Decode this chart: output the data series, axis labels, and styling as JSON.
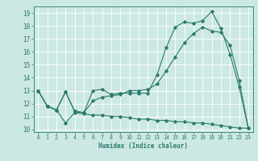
{
  "title": "",
  "xlabel": "Humidex (Indice chaleur)",
  "ylabel": "",
  "xlim": [
    -0.5,
    23.5
  ],
  "ylim": [
    9.8,
    19.5
  ],
  "yticks": [
    10,
    11,
    12,
    13,
    14,
    15,
    16,
    17,
    18,
    19
  ],
  "xticks": [
    0,
    1,
    2,
    3,
    4,
    5,
    6,
    7,
    8,
    9,
    10,
    11,
    12,
    13,
    14,
    15,
    16,
    17,
    18,
    19,
    20,
    21,
    22,
    23
  ],
  "bg_color": "#cce8e4",
  "grid_color": "#ffffff",
  "line_color": "#2a7a6a",
  "curves": {
    "line1": {
      "x": [
        0,
        1,
        2,
        3,
        4,
        5,
        6,
        7,
        8,
        9,
        10,
        11,
        12,
        13,
        14,
        15,
        16,
        17,
        18,
        19,
        20,
        21,
        22,
        23
      ],
      "y": [
        13.0,
        11.8,
        11.5,
        12.9,
        11.4,
        11.3,
        13.0,
        13.1,
        12.7,
        12.8,
        12.8,
        12.8,
        12.8,
        14.2,
        16.3,
        17.9,
        18.3,
        18.2,
        18.4,
        19.1,
        17.8,
        15.8,
        13.3,
        10.1
      ]
    },
    "line2": {
      "x": [
        0,
        1,
        2,
        3,
        4,
        5,
        6,
        7,
        8,
        9,
        10,
        11,
        12,
        13,
        14,
        15,
        16,
        17,
        18,
        19,
        20,
        21,
        22,
        23
      ],
      "y": [
        13.0,
        11.8,
        11.5,
        12.9,
        11.4,
        11.3,
        12.2,
        12.5,
        12.6,
        12.7,
        13.0,
        13.0,
        13.1,
        13.5,
        14.5,
        15.6,
        16.7,
        17.4,
        17.9,
        17.6,
        17.5,
        16.5,
        13.8,
        10.1
      ]
    },
    "line3": {
      "x": [
        0,
        1,
        2,
        3,
        4,
        5,
        6,
        7,
        8,
        9,
        10,
        11,
        12,
        13,
        14,
        15,
        16,
        17,
        18,
        19,
        20,
        21,
        22,
        23
      ],
      "y": [
        13.0,
        11.8,
        11.5,
        10.5,
        11.3,
        11.2,
        11.1,
        11.1,
        11.0,
        11.0,
        10.9,
        10.8,
        10.8,
        10.7,
        10.7,
        10.6,
        10.6,
        10.5,
        10.5,
        10.4,
        10.3,
        10.2,
        10.1,
        10.1
      ]
    }
  }
}
